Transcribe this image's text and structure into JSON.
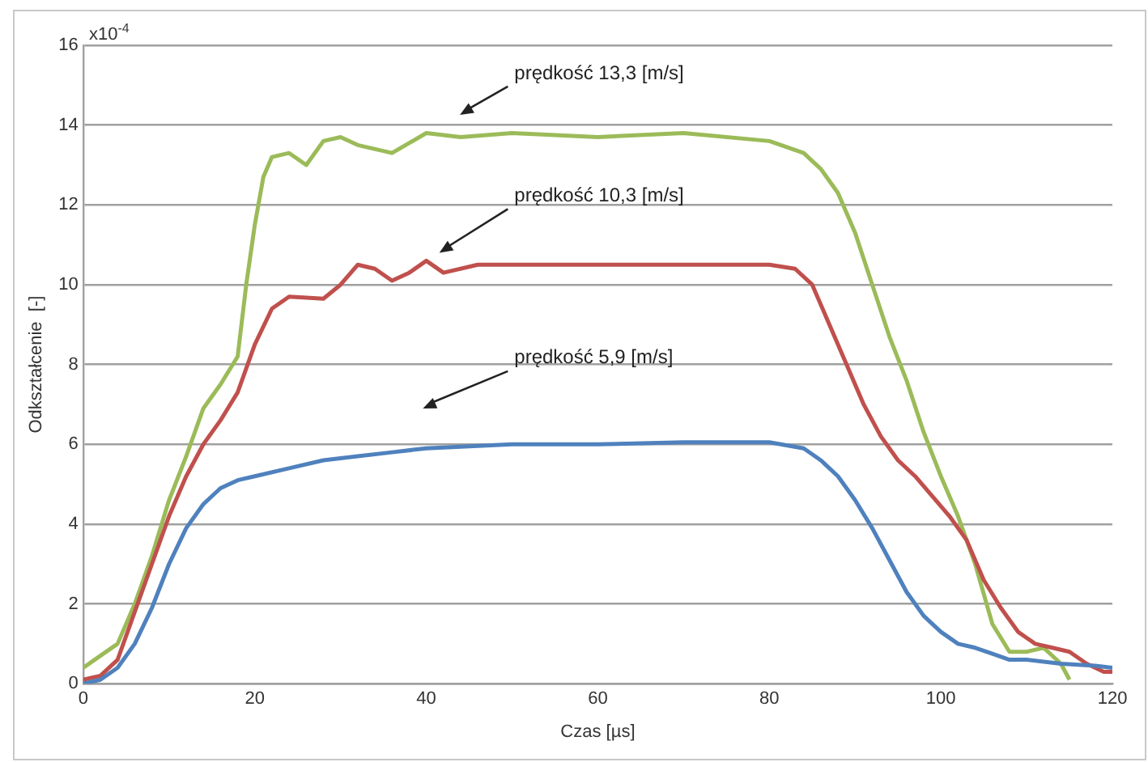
{
  "chart_data": {
    "type": "line",
    "xlabel": "Czas [µs]",
    "ylabel": "Odkształcenie  [-]",
    "xlim": [
      0,
      120
    ],
    "xticks": [
      0,
      20,
      40,
      60,
      80,
      100,
      120
    ],
    "ylim": [
      0,
      16
    ],
    "yticks": [
      0,
      2,
      4,
      6,
      8,
      10,
      12,
      14,
      16
    ],
    "grid": "y",
    "legend": false,
    "marker": "none",
    "line_style": "solid",
    "annotations": [
      "x10$^{-4}$",
      "prędkość 13,3 [m/s]",
      "prędkość 10,3 [m/s]",
      "prędkość 5,9 [m/s]"
    ],
    "series": [
      {
        "color": "#4f81bd",
        "x": [
          0,
          2,
          4,
          6,
          8,
          10,
          12,
          14,
          16,
          18,
          20,
          24,
          28,
          32,
          36,
          40,
          50,
          60,
          70,
          80,
          84,
          86,
          88,
          90,
          92,
          94,
          96,
          98,
          100,
          102,
          104,
          106,
          108,
          110,
          114,
          118,
          120
        ],
        "values": [
          0,
          0.1,
          0.4,
          1.0,
          1.9,
          3.0,
          3.9,
          4.5,
          4.9,
          5.1,
          5.2,
          5.4,
          5.6,
          5.7,
          5.8,
          5.9,
          6.0,
          6.0,
          6.05,
          6.05,
          5.9,
          5.6,
          5.2,
          4.6,
          3.9,
          3.1,
          2.3,
          1.7,
          1.3,
          1.0,
          0.9,
          0.75,
          0.6,
          0.6,
          0.5,
          0.45,
          0.4
        ]
      },
      {
        "color": "#c0504d",
        "x": [
          0,
          2,
          4,
          6,
          8,
          10,
          12,
          14,
          16,
          18,
          20,
          22,
          24,
          28,
          30,
          32,
          34,
          36,
          38,
          40,
          42,
          46,
          50,
          60,
          70,
          80,
          83,
          85,
          87,
          89,
          91,
          93,
          95,
          97,
          99,
          101,
          103,
          105,
          107,
          109,
          111,
          113,
          115,
          117,
          119,
          120
        ],
        "values": [
          0.1,
          0.2,
          0.6,
          1.8,
          3.0,
          4.2,
          5.2,
          6.0,
          6.6,
          7.3,
          8.5,
          9.4,
          9.7,
          9.65,
          10.0,
          10.5,
          10.4,
          10.1,
          10.3,
          10.6,
          10.3,
          10.5,
          10.5,
          10.5,
          10.5,
          10.5,
          10.4,
          10.0,
          9.0,
          8.0,
          7.0,
          6.2,
          5.6,
          5.2,
          4.7,
          4.2,
          3.6,
          2.6,
          1.9,
          1.3,
          1.0,
          0.9,
          0.8,
          0.5,
          0.3,
          0.3
        ]
      },
      {
        "color": "#9bbb59",
        "x": [
          0,
          2,
          4,
          6,
          8,
          10,
          12,
          14,
          16,
          18,
          19,
          20,
          21,
          22,
          24,
          26,
          28,
          30,
          32,
          36,
          40,
          44,
          50,
          60,
          70,
          80,
          84,
          86,
          88,
          90,
          92,
          94,
          96,
          98,
          100,
          102,
          104,
          106,
          108,
          110,
          112,
          114,
          115
        ],
        "values": [
          0.4,
          0.7,
          1.0,
          2.0,
          3.2,
          4.6,
          5.7,
          6.9,
          7.5,
          8.2,
          10.0,
          11.5,
          12.7,
          13.2,
          13.3,
          13.0,
          13.6,
          13.7,
          13.5,
          13.3,
          13.8,
          13.7,
          13.8,
          13.7,
          13.8,
          13.6,
          13.3,
          12.9,
          12.3,
          11.3,
          10.0,
          8.7,
          7.6,
          6.3,
          5.2,
          4.2,
          3.0,
          1.5,
          0.8,
          0.8,
          0.9,
          0.5,
          0.1
        ]
      }
    ]
  }
}
